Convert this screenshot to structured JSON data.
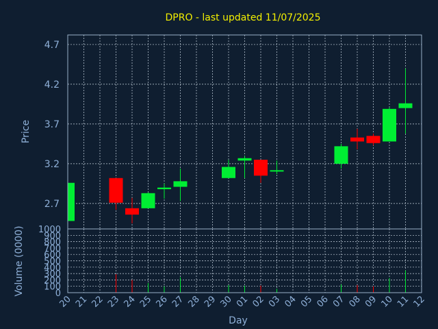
{
  "title": "DPRO - last updated 11/07/2025",
  "colors": {
    "background": "#0f1e30",
    "up": "#00ee33",
    "down": "#ff0000",
    "title": "#f4f000",
    "axis_text": "#8fb0d8"
  },
  "chart_data": {
    "type": "candlestick",
    "title": "DPRO - last updated 11/07/2025",
    "xlabel": "Day",
    "price_panel": {
      "ylabel": "Price",
      "ylim": [
        2.38,
        4.82
      ],
      "yticks": [
        "2.7",
        "3.2",
        "3.7",
        "4.2",
        "4.7"
      ],
      "grid": true
    },
    "volume_panel": {
      "ylabel": "Volume (0000)",
      "ylim": [
        0,
        1000
      ],
      "yticks": [
        "0",
        "100",
        "200",
        "300",
        "400",
        "500",
        "600",
        "700",
        "800",
        "900",
        "1000"
      ],
      "grid": true
    },
    "x_ticks": [
      "20",
      "21",
      "22",
      "23",
      "24",
      "25",
      "26",
      "27",
      "28",
      "29",
      "30",
      "01",
      "02",
      "03",
      "04",
      "05",
      "06",
      "07",
      "08",
      "09",
      "10",
      "11",
      "12"
    ],
    "candles": [
      {
        "day": "20",
        "open": 2.48,
        "high": 2.98,
        "low": 2.46,
        "close": 2.96,
        "volume": 0
      },
      {
        "day": "23",
        "open": 3.02,
        "high": 3.02,
        "low": 2.62,
        "close": 2.71,
        "volume": 290
      },
      {
        "day": "24",
        "open": 2.64,
        "high": 2.77,
        "low": 2.45,
        "close": 2.56,
        "volume": 200
      },
      {
        "day": "25",
        "open": 2.64,
        "high": 2.84,
        "low": 2.64,
        "close": 2.83,
        "volume": 150
      },
      {
        "day": "26",
        "open": 2.88,
        "high": 2.95,
        "low": 2.76,
        "close": 2.9,
        "volume": 100
      },
      {
        "day": "27",
        "open": 2.91,
        "high": 3.14,
        "low": 2.73,
        "close": 2.98,
        "volume": 240
      },
      {
        "day": "30",
        "open": 3.02,
        "high": 3.25,
        "low": 3.02,
        "close": 3.16,
        "volume": 120
      },
      {
        "day": "01",
        "open": 3.24,
        "high": 3.3,
        "low": 3.02,
        "close": 3.27,
        "volume": 110
      },
      {
        "day": "02",
        "open": 3.25,
        "high": 3.25,
        "low": 2.96,
        "close": 3.05,
        "volume": 110
      },
      {
        "day": "03",
        "open": 3.1,
        "high": 3.24,
        "low": 3.07,
        "close": 3.11,
        "volume": 60
      },
      {
        "day": "07",
        "open": 3.2,
        "high": 3.45,
        "low": 3.14,
        "close": 3.42,
        "volume": 130
      },
      {
        "day": "08",
        "open": 3.53,
        "high": 3.64,
        "low": 3.38,
        "close": 3.48,
        "volume": 120
      },
      {
        "day": "09",
        "open": 3.55,
        "high": 3.58,
        "low": 3.43,
        "close": 3.46,
        "volume": 100
      },
      {
        "day": "10",
        "open": 3.48,
        "high": 3.91,
        "low": 3.48,
        "close": 3.89,
        "volume": 230
      },
      {
        "day": "11",
        "open": 3.9,
        "high": 4.4,
        "low": 3.58,
        "close": 3.96,
        "volume": 350
      }
    ]
  }
}
